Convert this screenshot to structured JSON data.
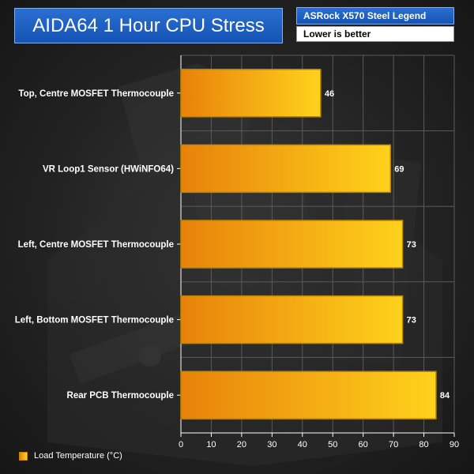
{
  "header": {
    "title": "AIDA64 1 Hour CPU Stress",
    "board": "ASRock X570 Steel Legend",
    "note": "Lower is better"
  },
  "legend": {
    "label": "Load Temperature (°C)"
  },
  "colors": {
    "title_bg": "#1f5fc4",
    "bar_start": "#e8820a",
    "bar_end": "#ffd21c",
    "bar_border": "#b8860b",
    "grid": "#5a5a5a",
    "text": "#ffffff"
  },
  "chart_data": {
    "type": "bar",
    "orientation": "horizontal",
    "categories": [
      "Top, Centre MOSFET Thermocouple",
      "VR Loop1 Sensor (HWiNFO64)",
      "Left, Centre MOSFET Thermocouple",
      "Left, Bottom MOSFET Thermocouple",
      "Rear PCB Thermocouple"
    ],
    "series": [
      {
        "name": "Load Temperature (°C)",
        "values": [
          46,
          69,
          73,
          73,
          84
        ]
      }
    ],
    "title": "AIDA64 1 Hour CPU Stress",
    "xlabel": "",
    "ylabel": "",
    "xlim": [
      0,
      90
    ],
    "xticks": [
      0,
      10,
      20,
      30,
      40,
      50,
      60,
      70,
      80,
      90
    ],
    "grid": true,
    "legend_position": "bottom-left"
  }
}
